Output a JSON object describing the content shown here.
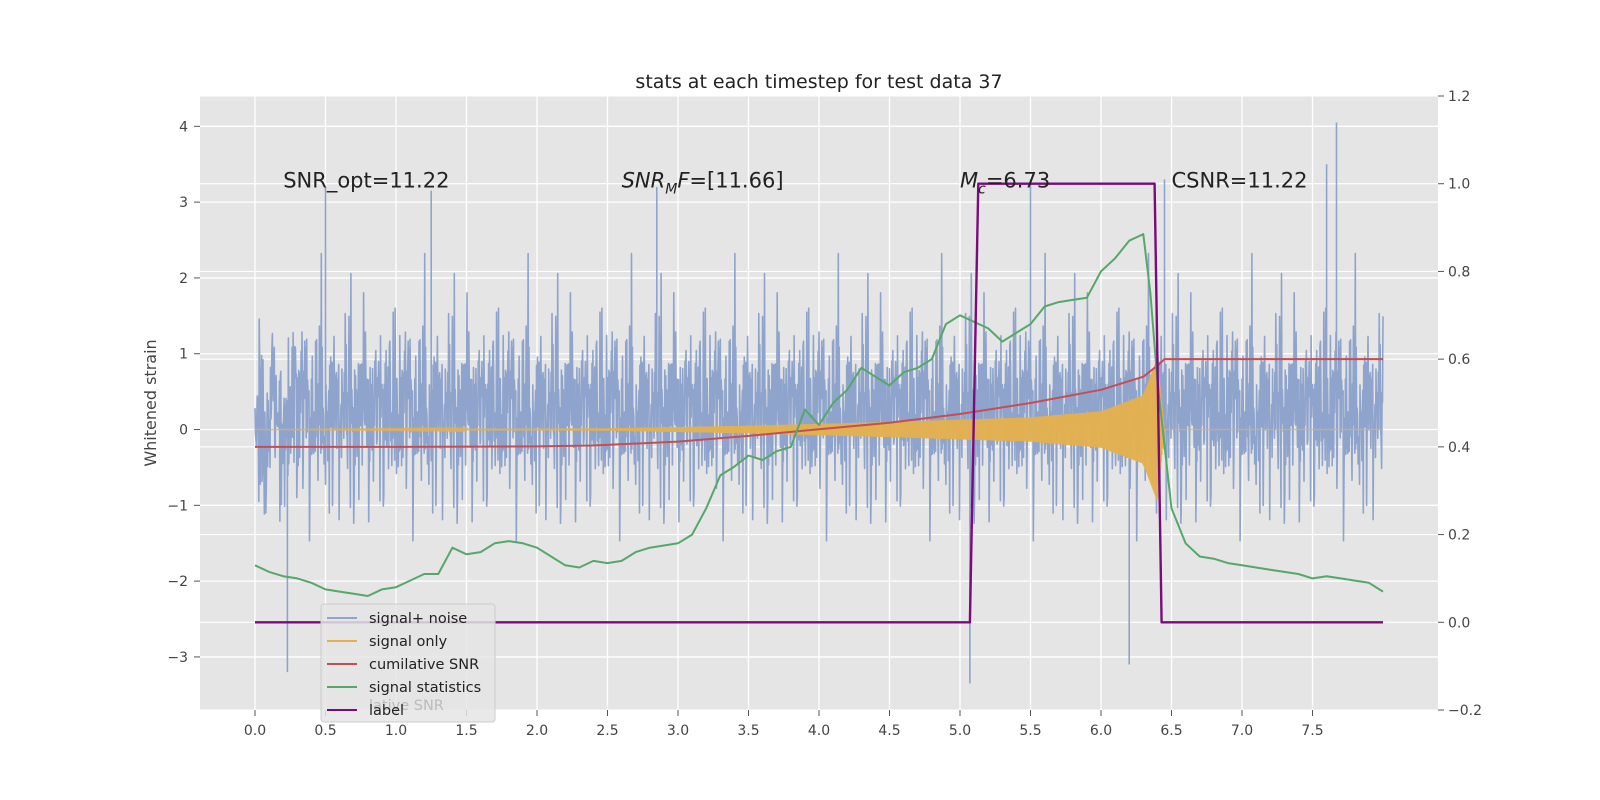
{
  "chart_data": {
    "type": "line",
    "title": "stats at each timestep for test data 37",
    "ylabel": "Whitened strain",
    "xlabel": "",
    "xlim": [
      -0.39,
      8.39
    ],
    "ylim": [
      -3.7,
      4.4
    ],
    "y2lim": [
      -0.2,
      1.2
    ],
    "x_ticks": [
      0.0,
      0.5,
      1.0,
      1.5,
      2.0,
      2.5,
      3.0,
      3.5,
      4.0,
      4.5,
      5.0,
      5.5,
      6.0,
      6.5,
      7.0,
      7.5
    ],
    "x_tick_labels": [
      "0.0",
      "0.5",
      "1.0",
      "1.5",
      "2.0",
      "2.5",
      "3.0",
      "3.5",
      "4.0",
      "4.5",
      "5.0",
      "5.5",
      "6.0",
      "6.5",
      "7.0",
      "7.5"
    ],
    "y_ticks": [
      -3,
      -2,
      -1,
      0,
      1,
      2,
      3,
      4
    ],
    "y_tick_labels": [
      "−3",
      "−2",
      "−1",
      "0",
      "1",
      "2",
      "3",
      "4"
    ],
    "y2_ticks": [
      -0.2,
      0.0,
      0.2,
      0.4,
      0.6,
      0.8,
      1.0,
      1.2
    ],
    "y2_tick_labels": [
      "−0.2",
      "0.0",
      "0.2",
      "0.4",
      "0.6",
      "0.8",
      "1.0",
      "1.2"
    ],
    "grid": true,
    "legend_position": "lower-left",
    "annotations": [
      {
        "x": 0.2,
        "y": 3.3,
        "prefix": "SNR_opt=11.22",
        "sub": "",
        "suffix": "",
        "italic": false
      },
      {
        "x": 2.6,
        "y": 3.3,
        "prefix": "SNR",
        "sub": "M",
        "suffix": "F=[11.66]",
        "italic": true
      },
      {
        "x": 5.0,
        "y": 3.3,
        "prefix": "M",
        "sub": "c",
        "suffix": "=6.73",
        "italic": "first"
      },
      {
        "x": 6.5,
        "y": 3.3,
        "prefix": "CSNR=11.22",
        "sub": "",
        "suffix": "",
        "italic": false
      }
    ],
    "series": [
      {
        "name": "signal+ noise",
        "axis": "left",
        "color": "#8fa4cc",
        "style": "noise",
        "x_range": [
          0.0,
          8.0
        ],
        "envelope_upper": 2.0,
        "envelope_lower": -2.4,
        "peak_max": 4.05,
        "peak_min": -3.35
      },
      {
        "name": "signal only",
        "axis": "left",
        "color": "#e3b04f",
        "style": "chirp",
        "x_range": [
          0.0,
          8.0
        ],
        "amplitude_points": [
          [
            0.0,
            0.0
          ],
          [
            2.5,
            0.015
          ],
          [
            3.5,
            0.05
          ],
          [
            4.5,
            0.1
          ],
          [
            5.5,
            0.16
          ],
          [
            6.0,
            0.24
          ],
          [
            6.3,
            0.45
          ],
          [
            6.4,
            0.95
          ],
          [
            6.45,
            0.0
          ],
          [
            8.0,
            0.0
          ]
        ]
      },
      {
        "name": "cumilative SNR",
        "axis": "right",
        "color": "#c44e52",
        "x": [
          0.0,
          1.0,
          2.0,
          2.4,
          3.0,
          3.5,
          4.0,
          4.5,
          5.0,
          5.5,
          6.0,
          6.3,
          6.4,
          6.45,
          8.0
        ],
        "y": [
          0.4,
          0.4,
          0.401,
          0.403,
          0.412,
          0.425,
          0.44,
          0.455,
          0.475,
          0.5,
          0.53,
          0.56,
          0.585,
          0.6,
          0.6
        ]
      },
      {
        "name": "signal statistics",
        "axis": "right",
        "color": "#55a868",
        "x": [
          0.0,
          0.1,
          0.2,
          0.3,
          0.4,
          0.5,
          0.6,
          0.7,
          0.8,
          0.9,
          1.0,
          1.1,
          1.2,
          1.3,
          1.4,
          1.5,
          1.6,
          1.7,
          1.8,
          1.9,
          2.0,
          2.1,
          2.2,
          2.3,
          2.4,
          2.5,
          2.6,
          2.7,
          2.8,
          2.9,
          3.0,
          3.1,
          3.2,
          3.3,
          3.4,
          3.5,
          3.6,
          3.7,
          3.8,
          3.9,
          4.0,
          4.1,
          4.2,
          4.3,
          4.4,
          4.5,
          4.6,
          4.7,
          4.8,
          4.9,
          5.0,
          5.1,
          5.2,
          5.3,
          5.4,
          5.5,
          5.6,
          5.7,
          5.8,
          5.9,
          6.0,
          6.1,
          6.2,
          6.3,
          6.35,
          6.4,
          6.5,
          6.6,
          6.7,
          6.8,
          6.9,
          7.0,
          7.1,
          7.2,
          7.3,
          7.4,
          7.5,
          7.6,
          7.7,
          7.8,
          7.9,
          8.0
        ],
        "y": [
          0.13,
          0.115,
          0.105,
          0.1,
          0.09,
          0.075,
          0.07,
          0.065,
          0.06,
          0.075,
          0.08,
          0.095,
          0.11,
          0.11,
          0.17,
          0.155,
          0.16,
          0.18,
          0.185,
          0.18,
          0.17,
          0.15,
          0.13,
          0.125,
          0.14,
          0.135,
          0.14,
          0.16,
          0.17,
          0.175,
          0.18,
          0.2,
          0.26,
          0.335,
          0.355,
          0.38,
          0.37,
          0.39,
          0.4,
          0.485,
          0.45,
          0.5,
          0.53,
          0.58,
          0.56,
          0.54,
          0.57,
          0.58,
          0.6,
          0.68,
          0.7,
          0.685,
          0.67,
          0.64,
          0.66,
          0.68,
          0.72,
          0.73,
          0.735,
          0.74,
          0.8,
          0.83,
          0.87,
          0.885,
          0.75,
          0.55,
          0.26,
          0.18,
          0.15,
          0.145,
          0.135,
          0.13,
          0.125,
          0.12,
          0.115,
          0.11,
          0.1,
          0.105,
          0.1,
          0.095,
          0.09,
          0.07
        ]
      },
      {
        "name": "label",
        "axis": "right",
        "color": "#7b0a7b",
        "x": [
          0.0,
          5.07,
          5.13,
          6.38,
          6.43,
          8.0
        ],
        "y": [
          0.0,
          0.0,
          1.0,
          1.0,
          0.0,
          0.0
        ]
      }
    ],
    "legend_entries": [
      {
        "name": "signal+ noise",
        "color": "#8fa4cc"
      },
      {
        "name": "signal only",
        "color": "#e3b04f"
      },
      {
        "name": "cumilative SNR",
        "color": "#c44e52"
      },
      {
        "name": "signal statistics",
        "color": "#55a868"
      },
      {
        "name": "label",
        "color": "#7b0a7b"
      }
    ],
    "ghost_legend_text": "lative SNR"
  }
}
